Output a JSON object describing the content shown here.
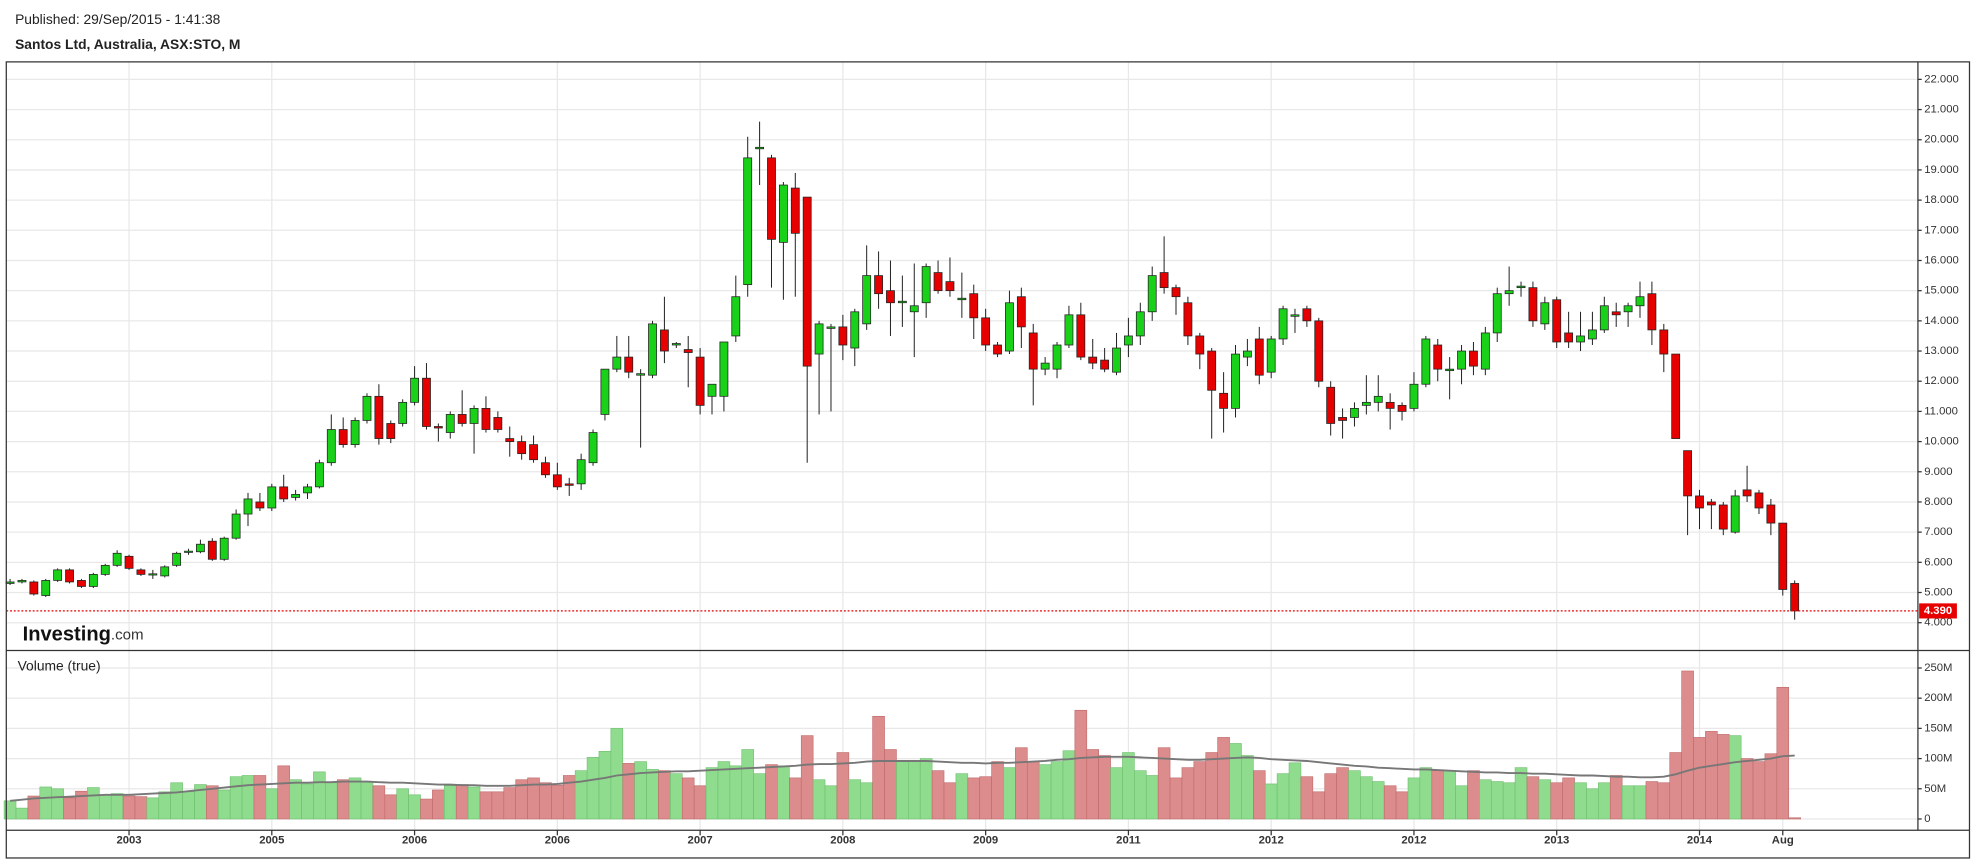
{
  "header": {
    "published": "Published: 29/Sep/2015 - 1:41:38"
  },
  "logo": {
    "name": "Investing",
    "suffix": ".com"
  },
  "chart_data": [
    {
      "type": "candlestick",
      "title": "Santos Ltd, Australia, ASX:STO, M",
      "up_color": "#19d119",
      "down_color": "#e60000",
      "outline_color": "#222222",
      "categories": [
        null,
        null,
        null,
        null,
        null,
        null,
        null,
        null,
        null,
        null,
        "2003",
        null,
        null,
        null,
        null,
        null,
        null,
        null,
        null,
        null,
        null,
        null,
        "2005",
        null,
        null,
        null,
        null,
        null,
        null,
        null,
        null,
        null,
        null,
        null,
        "2006",
        null,
        null,
        null,
        null,
        null,
        null,
        null,
        null,
        null,
        null,
        null,
        "2006",
        null,
        null,
        null,
        null,
        null,
        null,
        null,
        null,
        null,
        null,
        null,
        "2007",
        null,
        null,
        null,
        null,
        null,
        null,
        null,
        null,
        null,
        null,
        null,
        "2008",
        null,
        null,
        null,
        null,
        null,
        null,
        null,
        null,
        null,
        null,
        null,
        "2009",
        null,
        null,
        null,
        null,
        null,
        null,
        null,
        null,
        null,
        null,
        null,
        "2011",
        null,
        null,
        null,
        null,
        null,
        null,
        null,
        null,
        null,
        null,
        null,
        "2012",
        null,
        null,
        null,
        null,
        null,
        null,
        null,
        null,
        null,
        null,
        null,
        "2012",
        null,
        null,
        null,
        null,
        null,
        null,
        null,
        null,
        null,
        null,
        null,
        "2013",
        null,
        null,
        null,
        null,
        null,
        null,
        null,
        null,
        null,
        null,
        null,
        "2014",
        null,
        null,
        null,
        null,
        null,
        null,
        "Aug",
        null
      ],
      "open": [
        5.3,
        5.35,
        5.35,
        4.9,
        5.4,
        5.75,
        5.4,
        5.2,
        5.6,
        5.9,
        6.2,
        5.75,
        5.6,
        5.55,
        5.9,
        6.33,
        6.35,
        6.7,
        6.1,
        6.8,
        7.6,
        8.0,
        7.8,
        8.5,
        8.15,
        8.3,
        8.5,
        9.3,
        10.4,
        9.9,
        10.7,
        11.5,
        10.6,
        10.6,
        11.3,
        12.1,
        10.5,
        10.3,
        10.9,
        10.6,
        11.1,
        10.8,
        10.1,
        10.0,
        9.9,
        9.3,
        8.9,
        8.6,
        8.6,
        9.3,
        10.9,
        12.4,
        12.8,
        12.2,
        12.2,
        13.7,
        13.2,
        13.05,
        12.8,
        11.5,
        11.5,
        13.5,
        15.2,
        19.7,
        19.4,
        16.6,
        18.4,
        18.1,
        12.9,
        13.75,
        13.8,
        13.1,
        13.9,
        15.5,
        15.0,
        14.6,
        14.3,
        14.6,
        15.6,
        15.3,
        14.7,
        14.9,
        14.1,
        13.2,
        13.0,
        14.8,
        13.6,
        12.4,
        12.4,
        13.2,
        14.2,
        12.8,
        12.7,
        12.3,
        13.2,
        13.5,
        14.3,
        15.6,
        15.1,
        14.6,
        13.5,
        13.0,
        11.6,
        11.1,
        12.8,
        13.4,
        12.3,
        13.4,
        14.15,
        14.4,
        14.0,
        11.8,
        10.8,
        10.8,
        11.2,
        11.3,
        11.3,
        11.2,
        11.1,
        11.9,
        13.2,
        12.35,
        12.4,
        13.0,
        12.4,
        13.6,
        14.9,
        15.1,
        15.1,
        13.9,
        14.7,
        13.6,
        13.3,
        13.4,
        13.7,
        14.3,
        14.3,
        14.5,
        14.9,
        13.7,
        12.9,
        9.7,
        8.2,
        8.0,
        7.9,
        7.0,
        8.4,
        8.3,
        7.9,
        7.3,
        5.3
      ],
      "high": [
        5.45,
        5.45,
        5.4,
        5.45,
        5.8,
        5.8,
        5.45,
        5.65,
        5.95,
        6.4,
        6.25,
        5.8,
        5.75,
        5.9,
        6.35,
        6.45,
        6.75,
        6.8,
        6.85,
        7.75,
        8.3,
        8.3,
        8.6,
        8.9,
        8.4,
        8.6,
        9.4,
        10.9,
        10.8,
        10.8,
        11.6,
        11.9,
        10.7,
        11.4,
        12.5,
        12.6,
        10.6,
        11.0,
        11.7,
        11.2,
        11.5,
        11.0,
        10.5,
        10.2,
        10.2,
        9.5,
        9.3,
        8.8,
        9.6,
        10.4,
        12.4,
        13.5,
        13.5,
        12.4,
        14.0,
        14.8,
        13.3,
        13.5,
        13.1,
        11.9,
        13.3,
        15.5,
        20.1,
        20.6,
        19.5,
        18.6,
        18.9,
        18.1,
        14.0,
        13.9,
        14.2,
        14.4,
        16.5,
        16.3,
        16.0,
        15.5,
        15.9,
        15.9,
        16.0,
        16.1,
        15.6,
        15.2,
        14.4,
        13.3,
        15.0,
        15.1,
        13.9,
        12.8,
        13.3,
        14.5,
        14.6,
        13.4,
        13.1,
        13.6,
        14.1,
        14.6,
        15.8,
        16.8,
        15.2,
        14.8,
        13.6,
        13.1,
        12.3,
        13.2,
        13.4,
        13.8,
        13.5,
        14.5,
        14.4,
        14.5,
        14.1,
        12.0,
        11.1,
        11.3,
        12.2,
        12.2,
        11.6,
        11.3,
        12.3,
        13.5,
        13.4,
        12.8,
        13.2,
        13.3,
        13.8,
        15.1,
        15.8,
        15.3,
        15.3,
        14.8,
        14.8,
        14.3,
        14.3,
        14.3,
        14.8,
        14.6,
        14.6,
        15.3,
        15.3,
        13.9,
        12.9,
        9.7,
        8.4,
        8.1,
        8.0,
        8.4,
        9.2,
        8.4,
        8.1,
        7.3,
        5.4
      ],
      "low": [
        5.25,
        5.3,
        4.9,
        4.85,
        5.35,
        5.3,
        5.15,
        5.15,
        5.55,
        5.85,
        5.75,
        5.55,
        5.45,
        5.5,
        5.85,
        6.25,
        6.3,
        6.05,
        6.05,
        6.75,
        7.2,
        7.7,
        7.7,
        8.0,
        8.05,
        8.1,
        8.45,
        9.2,
        9.8,
        9.8,
        10.6,
        9.9,
        9.95,
        10.5,
        11.2,
        10.4,
        10.0,
        10.1,
        10.5,
        9.6,
        10.3,
        10.3,
        9.5,
        9.4,
        9.3,
        8.8,
        8.4,
        8.2,
        8.4,
        9.2,
        10.7,
        12.3,
        12.1,
        9.8,
        12.1,
        12.6,
        13.1,
        11.8,
        10.9,
        10.9,
        11.0,
        13.3,
        14.8,
        18.5,
        15.1,
        14.7,
        14.8,
        9.3,
        10.9,
        11.0,
        12.7,
        12.5,
        13.7,
        14.4,
        13.5,
        13.8,
        12.8,
        14.1,
        14.9,
        14.8,
        14.1,
        13.4,
        13.0,
        12.8,
        12.9,
        13.1,
        11.2,
        12.2,
        12.1,
        13.1,
        12.7,
        12.4,
        12.3,
        12.2,
        12.8,
        13.2,
        14.0,
        14.9,
        14.2,
        13.2,
        12.4,
        10.1,
        10.3,
        10.8,
        12.5,
        11.9,
        12.1,
        13.2,
        13.6,
        13.8,
        11.8,
        10.2,
        10.1,
        10.5,
        10.9,
        11.0,
        10.4,
        10.7,
        11.0,
        11.8,
        12.0,
        11.4,
        11.9,
        12.2,
        12.2,
        13.3,
        14.5,
        14.8,
        13.8,
        13.7,
        13.1,
        13.1,
        13.0,
        13.2,
        13.6,
        13.8,
        13.8,
        14.1,
        13.2,
        12.3,
        10.1,
        6.9,
        7.1,
        7.1,
        6.9,
        6.95,
        8.0,
        7.6,
        6.9,
        4.9,
        4.1
      ],
      "close": [
        5.35,
        5.4,
        4.95,
        5.4,
        5.75,
        5.35,
        5.2,
        5.6,
        5.9,
        6.3,
        5.8,
        5.6,
        5.62,
        5.85,
        6.3,
        6.37,
        6.6,
        6.1,
        6.8,
        7.6,
        8.1,
        7.8,
        8.5,
        8.1,
        8.25,
        8.5,
        9.3,
        10.4,
        9.9,
        10.7,
        11.5,
        10.1,
        10.1,
        11.3,
        12.1,
        10.5,
        10.45,
        10.9,
        10.6,
        11.1,
        10.4,
        10.4,
        10.0,
        9.6,
        9.4,
        8.9,
        8.5,
        8.55,
        9.4,
        10.3,
        12.4,
        12.8,
        12.3,
        12.25,
        13.9,
        13.0,
        13.25,
        12.95,
        11.2,
        11.9,
        13.3,
        14.8,
        19.4,
        19.75,
        16.7,
        18.5,
        16.9,
        12.5,
        13.9,
        13.8,
        13.2,
        14.3,
        15.5,
        14.9,
        14.6,
        14.65,
        14.5,
        15.8,
        15.0,
        15.0,
        14.75,
        14.1,
        13.2,
        12.9,
        14.6,
        13.8,
        12.4,
        12.6,
        13.2,
        14.2,
        12.8,
        12.6,
        12.4,
        13.1,
        13.5,
        14.3,
        15.5,
        15.1,
        14.8,
        13.5,
        12.9,
        11.7,
        11.1,
        12.9,
        13.0,
        12.2,
        13.4,
        14.4,
        14.2,
        14.0,
        12.0,
        10.6,
        10.7,
        11.1,
        11.3,
        11.5,
        11.1,
        11.0,
        11.9,
        13.4,
        12.4,
        12.4,
        13.0,
        12.5,
        13.6,
        14.9,
        15.0,
        15.15,
        14.0,
        14.6,
        13.3,
        13.3,
        13.5,
        13.7,
        14.5,
        14.2,
        14.5,
        14.8,
        13.7,
        12.9,
        10.1,
        8.2,
        7.8,
        7.9,
        7.1,
        8.2,
        8.2,
        7.8,
        7.3,
        5.1,
        4.39
      ],
      "ylim": [
        3.08,
        22.58
      ],
      "yticks": [
        {
          "value": 4,
          "label": "4.000"
        },
        {
          "value": 5,
          "label": "5.000"
        },
        {
          "value": 6,
          "label": "6.000"
        },
        {
          "value": 7,
          "label": "7.000"
        },
        {
          "value": 8,
          "label": "8.000"
        },
        {
          "value": 9,
          "label": "9.000"
        },
        {
          "value": 10,
          "label": "10.000"
        },
        {
          "value": 11,
          "label": "11.000"
        },
        {
          "value": 12,
          "label": "12.000"
        },
        {
          "value": 13,
          "label": "13.000"
        },
        {
          "value": 14,
          "label": "14.000"
        },
        {
          "value": 15,
          "label": "15.000"
        },
        {
          "value": 16,
          "label": "16.000"
        },
        {
          "value": 17,
          "label": "17.000"
        },
        {
          "value": 18,
          "label": "18.000"
        },
        {
          "value": 19,
          "label": "19.000"
        },
        {
          "value": 20,
          "label": "20.000"
        },
        {
          "value": 21,
          "label": "21.000"
        },
        {
          "value": 22,
          "label": "22.000"
        }
      ],
      "last_price": {
        "value": 4.39,
        "label": "4.390"
      },
      "last_price_color": "#e60000",
      "grid": true
    },
    {
      "type": "volume",
      "title": "Volume (true)",
      "up_color": "#8fdc8f",
      "down_color": "#dc8c8c",
      "values": [
        30,
        18,
        38,
        53,
        50,
        35,
        46,
        52,
        40,
        42,
        38,
        37,
        35,
        45,
        60,
        45,
        57,
        55,
        48,
        70,
        72,
        72,
        50,
        88,
        65,
        58,
        78,
        60,
        65,
        68,
        62,
        55,
        40,
        50,
        40,
        33,
        48,
        55,
        57,
        53,
        45,
        45,
        52,
        65,
        68,
        60,
        56,
        72,
        80,
        102,
        112,
        150,
        92,
        95,
        82,
        80,
        75,
        68,
        55,
        85,
        95,
        88,
        115,
        75,
        90,
        88,
        68,
        138,
        65,
        55,
        110,
        65,
        60,
        170,
        115,
        95,
        95,
        100,
        80,
        60,
        75,
        68,
        70,
        95,
        85,
        118,
        95,
        90,
        95,
        113,
        180,
        115,
        105,
        85,
        110,
        80,
        72,
        118,
        68,
        85,
        95,
        110,
        135,
        125,
        105,
        80,
        58,
        75,
        93,
        70,
        45,
        75,
        85,
        80,
        70,
        62,
        55,
        45,
        68,
        85,
        80,
        80,
        55,
        80,
        65,
        62,
        60,
        85,
        70,
        65,
        60,
        68,
        60,
        50,
        60,
        72,
        55,
        55,
        62,
        60,
        110,
        245,
        135,
        145,
        140,
        138,
        100,
        95,
        108,
        218,
        2
      ],
      "ma": {
        "color": "#777777",
        "values": [
          30,
          32,
          34,
          35,
          36,
          37,
          38,
          39,
          40,
          40,
          40,
          41,
          42,
          43,
          44,
          46,
          48,
          50,
          52,
          54,
          56,
          57,
          58,
          59,
          60,
          60,
          61,
          61,
          62,
          62,
          62,
          61,
          60,
          60,
          59,
          58,
          57,
          57,
          56,
          56,
          55,
          55,
          55,
          56,
          57,
          57,
          58,
          60,
          62,
          65,
          68,
          72,
          74,
          76,
          77,
          78,
          79,
          79,
          80,
          81,
          82,
          83,
          84,
          85,
          86,
          87,
          88,
          90,
          91,
          91,
          92,
          93,
          95,
          96,
          96,
          96,
          96,
          96,
          95,
          94,
          93,
          93,
          92,
          93,
          93,
          94,
          95,
          96,
          98,
          99,
          101,
          102,
          103,
          103,
          103,
          102,
          101,
          100,
          99,
          98,
          98,
          99,
          100,
          101,
          102,
          101,
          99,
          98,
          97,
          96,
          94,
          92,
          90,
          88,
          87,
          85,
          84,
          83,
          82,
          82,
          81,
          80,
          79,
          78,
          77,
          77,
          76,
          76,
          75,
          75,
          74,
          73,
          72,
          72,
          71,
          70,
          70,
          69,
          69,
          70,
          74,
          80,
          85,
          88,
          91,
          94,
          96,
          98,
          100,
          104,
          105
        ]
      },
      "ylim": [
        -18.75,
        279
      ],
      "yticks": [
        {
          "value": 0,
          "label": "0"
        },
        {
          "value": 50,
          "label": "50M"
        },
        {
          "value": 100,
          "label": "100M"
        },
        {
          "value": 150,
          "label": "150M"
        },
        {
          "value": 200,
          "label": "200M"
        },
        {
          "value": 250,
          "label": "250M"
        }
      ],
      "grid": true
    }
  ]
}
